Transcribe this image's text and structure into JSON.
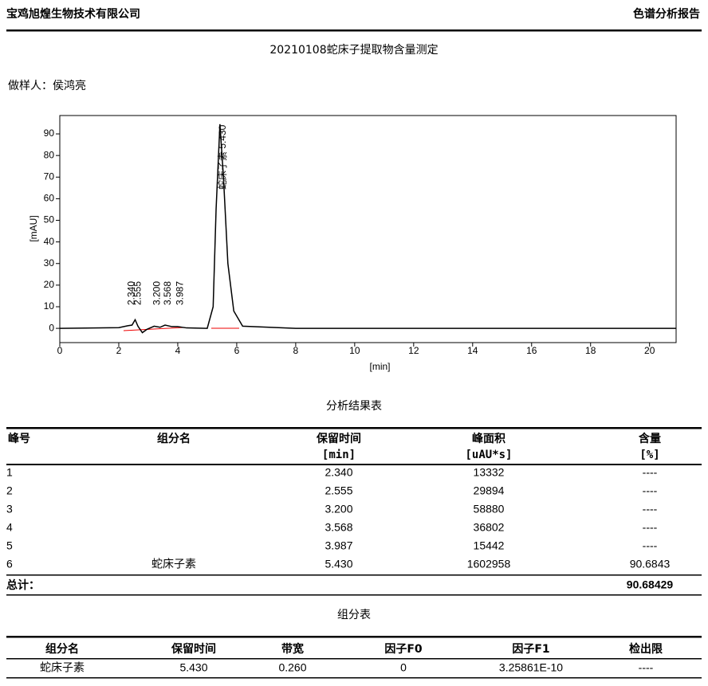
{
  "header": {
    "company": "宝鸡旭煌生物技术有限公司",
    "report_type": "色谱分析报告"
  },
  "title": "20210108蛇床子提取物含量测定",
  "operator": "做样人：侯鸿亮",
  "chart_data": {
    "type": "line",
    "x_label": "[min]",
    "y_label": "[mAU]",
    "color": "#000000",
    "x": [
      0,
      2.0,
      2.3,
      2.45,
      2.555,
      2.65,
      2.8,
      2.95,
      3.2,
      3.4,
      3.568,
      3.8,
      3.987,
      4.3,
      5.0,
      5.2,
      5.3,
      5.43,
      5.55,
      5.7,
      5.9,
      6.2,
      8,
      12,
      16,
      20.9
    ],
    "values": [
      0,
      0.3,
      1.2,
      1.5,
      4,
      1,
      -2,
      -0.5,
      1,
      0.5,
      1.5,
      0.8,
      0.8,
      0.2,
      0,
      10,
      55,
      94.5,
      70,
      30,
      8,
      1,
      0,
      0,
      0,
      0
    ],
    "xlim": [
      0,
      20.9
    ],
    "ylim": [
      -6.6,
      98.5
    ],
    "xticks": [
      0,
      2,
      4,
      6,
      8,
      10,
      12,
      14,
      16,
      18,
      20
    ],
    "yticks": [
      0,
      10,
      20,
      30,
      40,
      50,
      60,
      70,
      80,
      90
    ],
    "annotations": [
      {
        "x": 2.34,
        "label": "2.340"
      },
      {
        "x": 2.555,
        "label": "2.555"
      },
      {
        "x": 3.2,
        "label": "3.200"
      },
      {
        "x": 3.568,
        "label": "3.568"
      },
      {
        "x": 3.987,
        "label": "3.987"
      },
      {
        "x": 5.43,
        "label": "蛇床子素 5.430"
      }
    ]
  },
  "results": {
    "title": "分析结果表",
    "headers": [
      [
        "峰号"
      ],
      [
        "组分名"
      ],
      [
        "保留时间",
        "[min]"
      ],
      [
        "峰面积",
        "[uAU*s]"
      ],
      [
        "含量",
        "[%]"
      ]
    ],
    "rows": [
      [
        "1",
        null,
        "2.340",
        "13332",
        "----"
      ],
      [
        "2",
        null,
        "2.555",
        "29894",
        "----"
      ],
      [
        "3",
        null,
        "3.200",
        "58880",
        "----"
      ],
      [
        "4",
        null,
        "3.568",
        "36802",
        "----"
      ],
      [
        "5",
        null,
        "3.987",
        "15442",
        "----"
      ],
      [
        "6",
        "蛇床子素",
        "5.430",
        "1602958",
        "90.6843"
      ]
    ],
    "total_label": "总计：",
    "total_value": "90.68429"
  },
  "components": {
    "title": "组分表",
    "headers": [
      "组分名",
      "保留时间",
      "带宽",
      "因子F0",
      "因子F1",
      "检出限"
    ],
    "rows": [
      [
        "蛇床子素",
        "5.430",
        "0.260",
        "0",
        "3.25861E-10",
        "----"
      ]
    ]
  }
}
